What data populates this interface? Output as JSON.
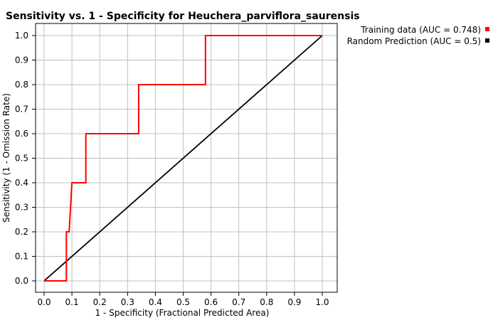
{
  "chart_data": {
    "type": "line",
    "title": "Sensitivity vs. 1 - Specificity for Heuchera_parviflora_saurensis",
    "xlabel": "1 - Specificity  (Fractional Predicted Area)",
    "ylabel": "Sensitivity  (1 - Omission Rate)",
    "xlim": [
      0,
      1.0
    ],
    "ylim": [
      0,
      1.0
    ],
    "x_ticks": [
      "0.0",
      "0.1",
      "0.2",
      "0.3",
      "0.4",
      "0.5",
      "0.6",
      "0.7",
      "0.8",
      "0.9",
      "1.0"
    ],
    "y_ticks": [
      "0.0",
      "0.1",
      "0.2",
      "0.3",
      "0.4",
      "0.5",
      "0.6",
      "0.7",
      "0.8",
      "0.9",
      "1.0"
    ],
    "grid": true,
    "legend_position": "top-right",
    "series": [
      {
        "name": "Training data (AUC = 0.748)",
        "color": "#ff0000",
        "x": [
          0.0,
          0.08,
          0.08,
          0.09,
          0.09,
          0.1,
          0.1,
          0.15,
          0.15,
          0.34,
          0.34,
          0.58,
          0.58,
          1.0
        ],
        "y": [
          0.0,
          0.0,
          0.2,
          0.2,
          0.2,
          0.4,
          0.4,
          0.4,
          0.6,
          0.6,
          0.8,
          0.8,
          1.0,
          1.0
        ]
      },
      {
        "name": "Random Prediction (AUC = 0.5)",
        "color": "#000000",
        "x": [
          0.0,
          1.0
        ],
        "y": [
          0.0,
          1.0
        ]
      }
    ]
  }
}
